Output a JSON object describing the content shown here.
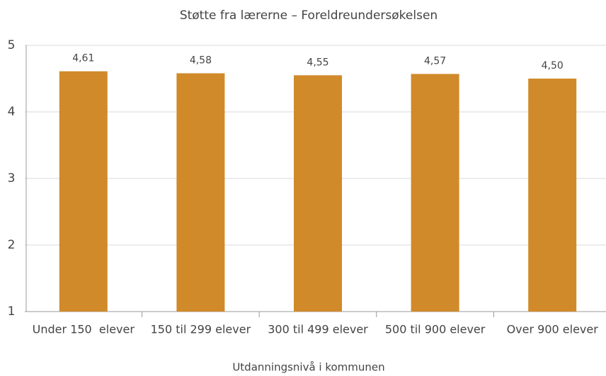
{
  "chart_data": {
    "type": "bar",
    "title": "Støtte fra lærerne – Foreldreundersøkelsen",
    "x_label": "Utdanningsnivå i kommunen",
    "categories": [
      "Under 150  elever",
      "150 til 299 elever",
      "300 til 499 elever",
      "500 til 900 elever",
      "Over 900 elever"
    ],
    "values": [
      4.61,
      4.58,
      4.55,
      4.57,
      4.5
    ],
    "value_labels": [
      "4,61",
      "4,58",
      "4,55",
      "4,57",
      "4,50"
    ],
    "color": "#d08a2a",
    "ylim": [
      1,
      5
    ],
    "yticks": [
      1,
      2,
      3,
      4,
      5
    ],
    "grid": true
  }
}
